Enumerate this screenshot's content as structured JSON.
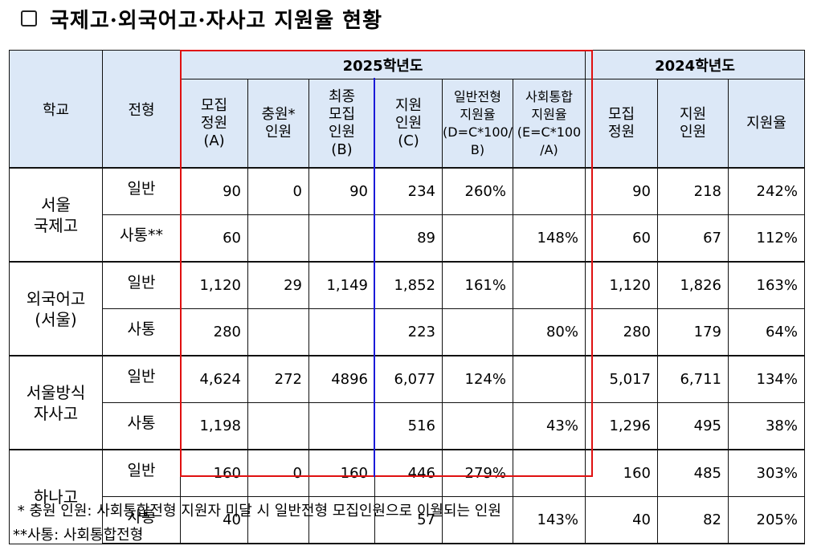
{
  "title": "국제고·외국어고·자사고 지원율 현황",
  "headers": {
    "school": "학교",
    "type": "전형",
    "year_2025": "2025학년도",
    "year_2024": "2024학년도",
    "col_2025": [
      [
        "모집",
        "정원",
        "(A)"
      ],
      [
        "충원*",
        "인원"
      ],
      [
        "최종",
        "모집",
        "인원",
        "(B)"
      ],
      [
        "지원",
        "인원",
        "(C)"
      ],
      [
        "일반전형",
        "지원율",
        "(D=C*100/",
        "B)"
      ],
      [
        "사회통합",
        "지원율",
        "(E=C*100",
        "/A)"
      ]
    ],
    "col_2024": [
      [
        "모집",
        "정원"
      ],
      [
        "지원",
        "인원"
      ],
      [
        "지원율"
      ]
    ]
  },
  "groups": [
    {
      "school": [
        "서울",
        "국제고"
      ],
      "rows": [
        {
          "type": "일반",
          "cells": [
            "90",
            "0",
            "90",
            "234",
            "260%",
            "",
            "90",
            "218",
            "242%"
          ]
        },
        {
          "type": "사통**",
          "cells": [
            "60",
            "",
            "",
            "89",
            "",
            "148%",
            "60",
            "67",
            "112%"
          ]
        }
      ]
    },
    {
      "school": [
        "외국어고",
        "(서울)"
      ],
      "rows": [
        {
          "type": "일반",
          "cells": [
            "1,120",
            "29",
            "1,149",
            "1,852",
            "161%",
            "",
            "1,120",
            "1,826",
            "163%"
          ]
        },
        {
          "type": "사통",
          "cells": [
            "280",
            "",
            "",
            "223",
            "",
            "80%",
            "280",
            "179",
            "64%"
          ]
        }
      ]
    },
    {
      "school": [
        "서울방식",
        "자사고"
      ],
      "rows": [
        {
          "type": "일반",
          "cells": [
            "4,624",
            "272",
            "4896",
            "6,077",
            "124%",
            "",
            "5,017",
            "6,711",
            "134%"
          ]
        },
        {
          "type": "사통",
          "cells": [
            "1,198",
            "",
            "",
            "516",
            "",
            "43%",
            "1,296",
            "495",
            "38%"
          ]
        }
      ]
    },
    {
      "school": [
        "하나고"
      ],
      "rows": [
        {
          "type": "일반",
          "cells": [
            "160",
            "0",
            "160",
            "446",
            "279%",
            "",
            "160",
            "485",
            "303%"
          ]
        },
        {
          "type": "사통",
          "cells": [
            "40",
            "",
            "",
            "57",
            "",
            "143%",
            "40",
            "82",
            "205%"
          ]
        }
      ]
    }
  ],
  "footnotes": [
    " * 충원 인원: 사회통합전형 지원자 미달 시 일반전형 모집인원으로 이월되는 인원",
    "**사통: 사회통합전형"
  ],
  "colors": {
    "header_bg": "#dce8f7",
    "frame_2025": "#e01010",
    "divider": "#1a1ad8"
  }
}
